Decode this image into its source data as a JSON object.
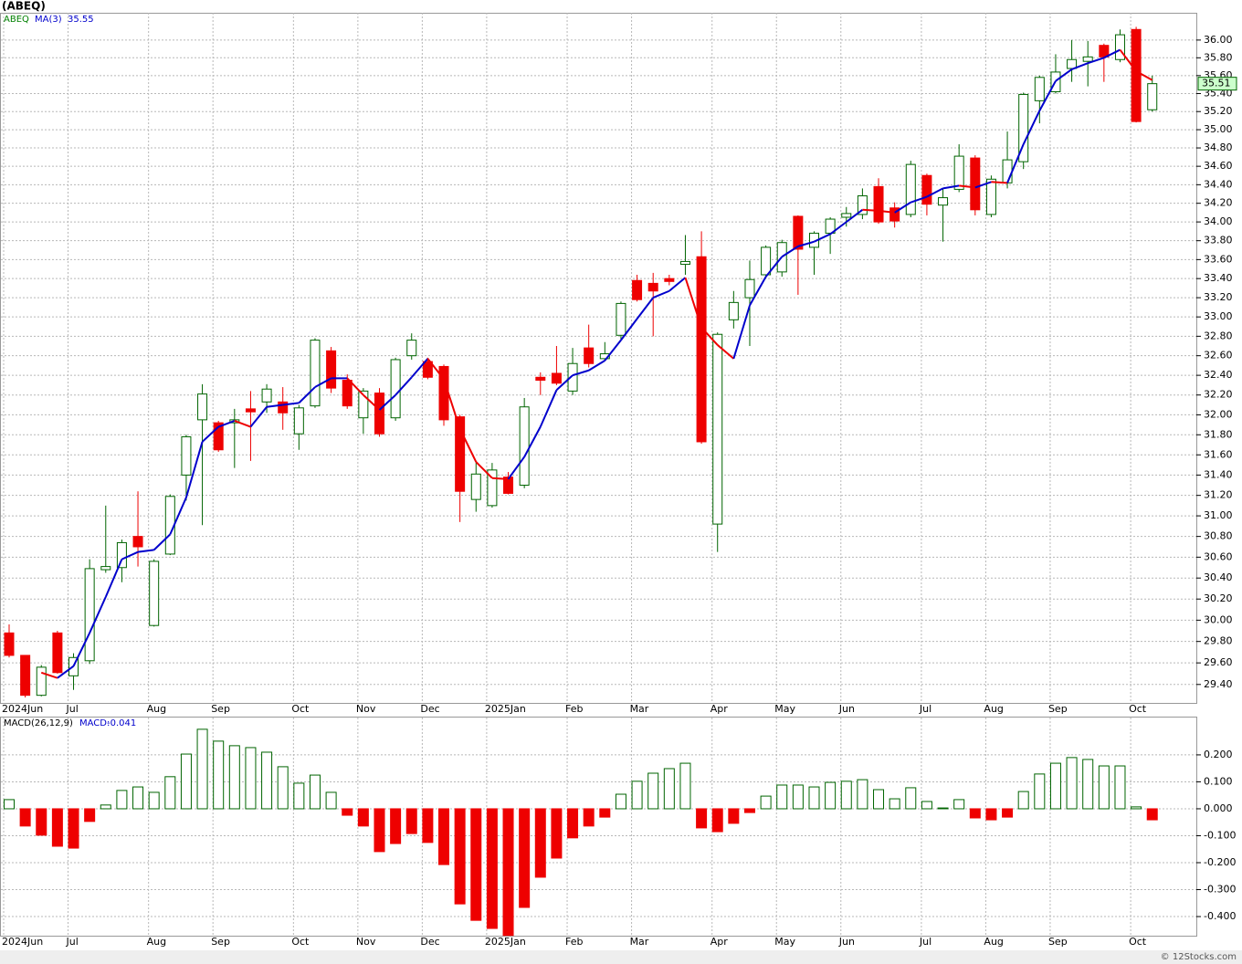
{
  "chart_data": [
    {
      "type": "candlestick",
      "title": "(ABEQ)",
      "symbol": "ABEQ",
      "log_scale": true,
      "grid": true,
      "up_color": "#006400",
      "down_color": "#ee0000",
      "symbol_color": "#008000",
      "categories": [
        "2024Jun",
        null,
        null,
        null,
        "Jul",
        null,
        null,
        null,
        null,
        "Aug",
        null,
        null,
        null,
        "Sep",
        null,
        null,
        null,
        null,
        "Oct",
        null,
        null,
        null,
        "Nov",
        null,
        null,
        null,
        "Dec",
        null,
        null,
        null,
        "2025Jan",
        null,
        null,
        null,
        null,
        "Feb",
        null,
        null,
        null,
        "Mar",
        null,
        null,
        null,
        null,
        "Apr",
        null,
        null,
        null,
        "May",
        null,
        null,
        null,
        "Jun",
        null,
        null,
        null,
        null,
        "Jul",
        null,
        null,
        null,
        "Aug",
        null,
        null,
        null,
        "Sep",
        null,
        null,
        null,
        null,
        "Oct",
        null
      ],
      "open": [
        29.88,
        29.67,
        29.3,
        29.88,
        29.48,
        29.62,
        30.48,
        30.5,
        30.8,
        29.95,
        30.63,
        31.4,
        31.95,
        31.92,
        31.92,
        32.06,
        32.13,
        32.13,
        31.81,
        32.09,
        32.65,
        32.35,
        31.97,
        32.22,
        31.97,
        32.6,
        32.54,
        32.49,
        31.98,
        31.16,
        31.1,
        31.38,
        31.3,
        32.38,
        32.42,
        32.24,
        32.68,
        32.57,
        32.81,
        33.38,
        33.35,
        33.4,
        33.55,
        33.63,
        30.92,
        32.97,
        33.2,
        33.44,
        33.47,
        34.06,
        33.73,
        33.88,
        34.05,
        34.08,
        34.38,
        34.15,
        34.08,
        34.5,
        34.18,
        34.35,
        34.69,
        34.08,
        34.42,
        34.65,
        35.32,
        35.42,
        35.68,
        35.76,
        35.94,
        35.78,
        36.12,
        35.22
      ],
      "high": [
        29.96,
        29.67,
        29.58,
        29.9,
        29.69,
        30.58,
        31.1,
        30.77,
        31.24,
        30.58,
        31.21,
        31.8,
        32.31,
        31.94,
        32.06,
        32.24,
        32.31,
        32.28,
        32.1,
        32.78,
        32.69,
        32.41,
        32.27,
        32.27,
        32.58,
        32.83,
        32.58,
        32.51,
        32.0,
        31.54,
        31.52,
        31.43,
        32.17,
        32.43,
        32.7,
        32.68,
        32.92,
        32.74,
        33.16,
        33.44,
        33.46,
        33.44,
        33.86,
        33.9,
        32.84,
        33.27,
        33.59,
        33.75,
        33.81,
        34.07,
        33.9,
        34.05,
        34.16,
        34.36,
        34.47,
        34.21,
        34.66,
        34.52,
        34.36,
        34.84,
        34.72,
        34.5,
        34.98,
        35.41,
        35.6,
        35.84,
        36.0,
        35.99,
        35.96,
        36.12,
        36.15,
        35.6
      ],
      "low": [
        29.65,
        29.28,
        29.29,
        29.5,
        29.35,
        29.59,
        30.45,
        30.36,
        30.51,
        29.94,
        30.62,
        31.15,
        30.91,
        31.63,
        31.47,
        31.54,
        32.02,
        31.85,
        31.65,
        32.07,
        32.22,
        32.06,
        31.81,
        31.78,
        31.94,
        32.56,
        32.36,
        31.89,
        30.94,
        31.04,
        31.08,
        31.21,
        31.27,
        32.2,
        32.3,
        32.2,
        32.48,
        32.55,
        32.77,
        33.16,
        32.8,
        33.33,
        33.44,
        31.71,
        30.65,
        32.88,
        32.7,
        33.4,
        33.42,
        33.23,
        33.44,
        33.66,
        33.95,
        34.03,
        33.98,
        33.94,
        34.05,
        34.07,
        33.79,
        34.32,
        34.07,
        34.05,
        34.36,
        34.57,
        35.07,
        35.4,
        35.53,
        35.48,
        35.53,
        35.75,
        35.08,
        35.2
      ],
      "close": [
        29.67,
        29.3,
        29.56,
        29.51,
        29.65,
        30.49,
        30.51,
        30.74,
        30.7,
        30.56,
        31.19,
        31.78,
        32.21,
        31.65,
        31.95,
        32.03,
        32.26,
        32.02,
        32.07,
        32.76,
        32.27,
        32.09,
        32.24,
        31.81,
        32.56,
        32.76,
        32.38,
        31.95,
        31.24,
        31.41,
        31.45,
        31.22,
        32.08,
        32.35,
        32.32,
        32.52,
        32.52,
        32.62,
        33.14,
        33.18,
        33.27,
        33.37,
        33.58,
        31.73,
        32.82,
        33.15,
        33.39,
        33.73,
        33.78,
        33.71,
        33.88,
        34.03,
        34.09,
        34.28,
        34.0,
        34.01,
        34.62,
        34.19,
        34.26,
        34.71,
        34.13,
        34.46,
        34.67,
        35.39,
        35.58,
        35.64,
        35.78,
        35.81,
        35.81,
        36.06,
        35.09,
        35.51
      ],
      "ma": {
        "name": "MA(3)",
        "up_color": "#0000cc",
        "down_color": "#ee0000",
        "values": [
          null,
          null,
          29.51,
          29.46,
          29.57,
          29.88,
          30.22,
          30.58,
          30.65,
          30.67,
          30.82,
          31.18,
          31.73,
          31.88,
          31.94,
          31.88,
          32.08,
          32.1,
          32.12,
          32.28,
          32.37,
          32.37,
          32.2,
          32.05,
          32.2,
          32.38,
          32.57,
          32.36,
          31.86,
          31.53,
          31.37,
          31.36,
          31.58,
          31.88,
          32.25,
          32.4,
          32.45,
          32.55,
          32.76,
          32.98,
          33.2,
          33.27,
          33.41,
          32.89,
          32.71,
          32.57,
          33.12,
          33.42,
          33.63,
          33.74,
          33.79,
          33.87,
          34.0,
          34.13,
          34.12,
          34.1,
          34.21,
          34.27,
          34.36,
          34.39,
          34.37,
          34.43,
          34.42,
          34.84,
          35.21,
          35.54,
          35.67,
          35.74,
          35.8,
          35.89,
          35.65,
          35.55
        ]
      },
      "ylim": [
        29.23,
        36.31
      ],
      "yticks": [
        {
          "value": 29.4,
          "label": "29.40"
        },
        {
          "value": 29.6,
          "label": "29.60"
        },
        {
          "value": 29.8,
          "label": "29.80"
        },
        {
          "value": 30,
          "label": "30.00"
        },
        {
          "value": 30.2,
          "label": "30.20"
        },
        {
          "value": 30.4,
          "label": "30.40"
        },
        {
          "value": 30.6,
          "label": "30.60"
        },
        {
          "value": 30.8,
          "label": "30.80"
        },
        {
          "value": 31,
          "label": "31.00"
        },
        {
          "value": 31.2,
          "label": "31.20"
        },
        {
          "value": 31.4,
          "label": "31.40"
        },
        {
          "value": 31.6,
          "label": "31.60"
        },
        {
          "value": 31.8,
          "label": "31.80"
        },
        {
          "value": 32,
          "label": "32.00"
        },
        {
          "value": 32.2,
          "label": "32.20"
        },
        {
          "value": 32.4,
          "label": "32.40"
        },
        {
          "value": 32.6,
          "label": "32.60"
        },
        {
          "value": 32.8,
          "label": "32.80"
        },
        {
          "value": 33,
          "label": "33.00"
        },
        {
          "value": 33.2,
          "label": "33.20"
        },
        {
          "value": 33.4,
          "label": "33.40"
        },
        {
          "value": 33.6,
          "label": "33.60"
        },
        {
          "value": 33.8,
          "label": "33.80"
        },
        {
          "value": 34,
          "label": "34.00"
        },
        {
          "value": 34.2,
          "label": "34.20"
        },
        {
          "value": 34.4,
          "label": "34.40"
        },
        {
          "value": 34.6,
          "label": "34.60"
        },
        {
          "value": 34.8,
          "label": "34.80"
        },
        {
          "value": 35,
          "label": "35.00"
        },
        {
          "value": 35.2,
          "label": "35.20"
        },
        {
          "value": 35.4,
          "label": "35.40"
        },
        {
          "value": 35.6,
          "label": "35.60"
        },
        {
          "value": 35.8,
          "label": "35.80"
        },
        {
          "value": 36,
          "label": "36.00"
        }
      ]
    },
    {
      "type": "bar",
      "name": "MACD(26,12,9)",
      "value_name": "MACD:",
      "name_color": "#0000cc",
      "grid": true,
      "up_color": "#006400",
      "down_color": "#ee0000",
      "values": [
        0.034,
        -0.064,
        -0.098,
        -0.139,
        -0.146,
        -0.047,
        0.014,
        0.068,
        0.081,
        0.061,
        0.119,
        0.203,
        0.295,
        0.251,
        0.234,
        0.227,
        0.21,
        0.156,
        0.095,
        0.125,
        0.061,
        -0.024,
        -0.064,
        -0.159,
        -0.129,
        -0.092,
        -0.125,
        -0.207,
        -0.353,
        -0.414,
        -0.444,
        -0.47,
        -0.366,
        -0.254,
        -0.183,
        -0.108,
        -0.064,
        -0.031,
        0.054,
        0.102,
        0.132,
        0.149,
        0.169,
        -0.071,
        -0.085,
        -0.054,
        -0.014,
        0.047,
        0.088,
        0.088,
        0.081,
        0.098,
        0.102,
        0.108,
        0.071,
        0.037,
        0.078,
        0.027,
        0.003,
        0.034,
        -0.034,
        -0.041,
        -0.031,
        0.064,
        0.129,
        0.169,
        0.19,
        0.183,
        0.159,
        0.159,
        0.007,
        -0.041
      ],
      "ylim": [
        -0.471,
        0.342
      ],
      "yticks": [
        {
          "value": -0.4,
          "label": "-0.400"
        },
        {
          "value": -0.3,
          "label": "-0.300"
        },
        {
          "value": -0.2,
          "label": "-0.200"
        },
        {
          "value": -0.1,
          "label": "-0.100"
        },
        {
          "value": 0,
          "label": "0.000"
        },
        {
          "value": 0.1,
          "label": "0.100"
        },
        {
          "value": 0.2,
          "label": "0.200"
        }
      ]
    }
  ],
  "watermark": "© 12Stocks.com"
}
